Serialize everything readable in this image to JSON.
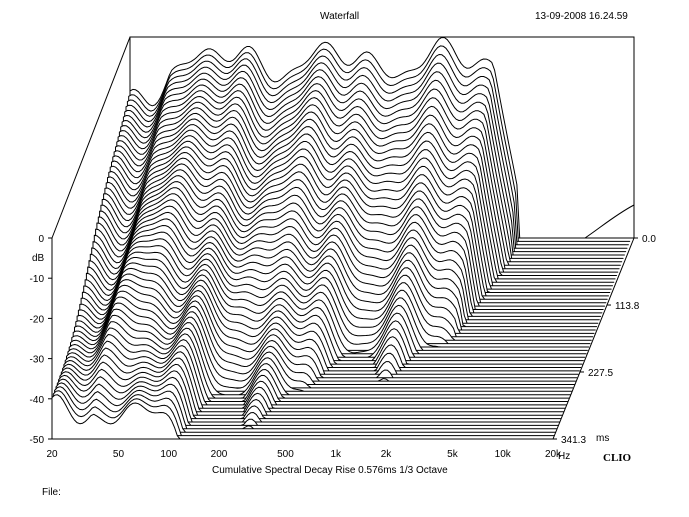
{
  "header": {
    "title": "Waterfall",
    "timestamp": "13-09-2008 16.24.59"
  },
  "footer": {
    "subtitle": "Cumulative Spectral Decay  Rise 0.576ms  1/3 Octave",
    "file_label": "File:",
    "brand": "CLIO"
  },
  "chart_data": {
    "type": "waterfall",
    "title": "Waterfall",
    "subtitle": "Cumulative Spectral Decay  Rise 0.576ms  1/3 Octave",
    "x_axis": {
      "unit": "Hz",
      "scale": "log",
      "range": [
        20,
        20000
      ],
      "ticks": [
        {
          "value": 20,
          "label": "20"
        },
        {
          "value": 50,
          "label": "50"
        },
        {
          "value": 100,
          "label": "100"
        },
        {
          "value": 200,
          "label": "200"
        },
        {
          "value": 500,
          "label": "500"
        },
        {
          "value": 1000,
          "label": "1k"
        },
        {
          "value": 2000,
          "label": "2k"
        },
        {
          "value": 5000,
          "label": "5k"
        },
        {
          "value": 10000,
          "label": "10k"
        },
        {
          "value": 20000,
          "label": "20k"
        }
      ]
    },
    "y_axis": {
      "unit": "dB",
      "range": [
        -50,
        0
      ],
      "ticks": [
        {
          "value": 0,
          "label": "0"
        },
        {
          "value": -10,
          "label": "-10"
        },
        {
          "value": -20,
          "label": "-20"
        },
        {
          "value": -30,
          "label": "-30"
        },
        {
          "value": -40,
          "label": "-40"
        },
        {
          "value": -50,
          "label": "-50"
        }
      ]
    },
    "z_axis": {
      "unit": "ms",
      "range": [
        0,
        341.3
      ],
      "ticks": [
        {
          "value": 0,
          "label": "0.0"
        },
        {
          "value": 113.8,
          "label": "113.8"
        },
        {
          "value": 227.5,
          "label": "227.5"
        },
        {
          "value": 341.3,
          "label": "341.3"
        }
      ]
    },
    "slices": 60,
    "legend": "none",
    "grid": false
  }
}
